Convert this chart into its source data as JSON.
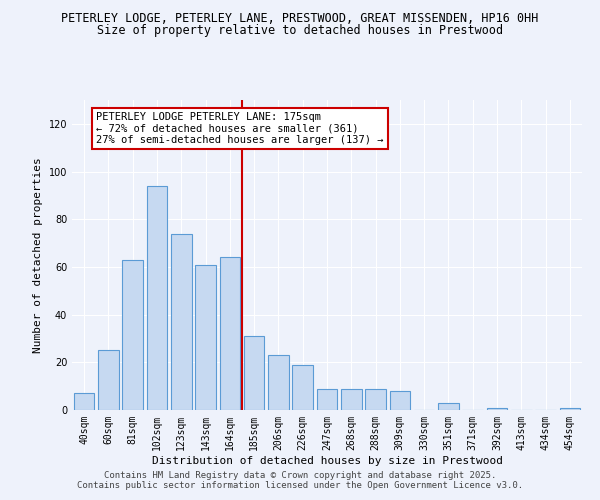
{
  "title": "PETERLEY LODGE, PETERLEY LANE, PRESTWOOD, GREAT MISSENDEN, HP16 0HH",
  "subtitle": "Size of property relative to detached houses in Prestwood",
  "xlabel": "Distribution of detached houses by size in Prestwood",
  "ylabel": "Number of detached properties",
  "bar_labels": [
    "40sqm",
    "60sqm",
    "81sqm",
    "102sqm",
    "123sqm",
    "143sqm",
    "164sqm",
    "185sqm",
    "206sqm",
    "226sqm",
    "247sqm",
    "268sqm",
    "288sqm",
    "309sqm",
    "330sqm",
    "351sqm",
    "371sqm",
    "392sqm",
    "413sqm",
    "434sqm",
    "454sqm"
  ],
  "bar_values": [
    7,
    25,
    63,
    94,
    74,
    61,
    64,
    31,
    23,
    19,
    9,
    9,
    9,
    8,
    0,
    3,
    0,
    1,
    0,
    0,
    1
  ],
  "bar_color": "#c6d9f1",
  "bar_edge_color": "#5b9bd5",
  "vline_x": 6.5,
  "vline_color": "#cc0000",
  "ylim": [
    0,
    130
  ],
  "yticks": [
    0,
    20,
    40,
    60,
    80,
    100,
    120
  ],
  "annotation_title": "PETERLEY LODGE PETERLEY LANE: 175sqm",
  "annotation_line1": "← 72% of detached houses are smaller (361)",
  "annotation_line2": "27% of semi-detached houses are larger (137) →",
  "annotation_box_color": "#ffffff",
  "annotation_border_color": "#cc0000",
  "footer1": "Contains HM Land Registry data © Crown copyright and database right 2025.",
  "footer2": "Contains public sector information licensed under the Open Government Licence v3.0.",
  "bg_color": "#eef2fb",
  "grid_color": "#ffffff",
  "title_fontsize": 8.5,
  "subtitle_fontsize": 8.5,
  "label_fontsize": 8,
  "tick_fontsize": 7,
  "footer_fontsize": 6.5
}
